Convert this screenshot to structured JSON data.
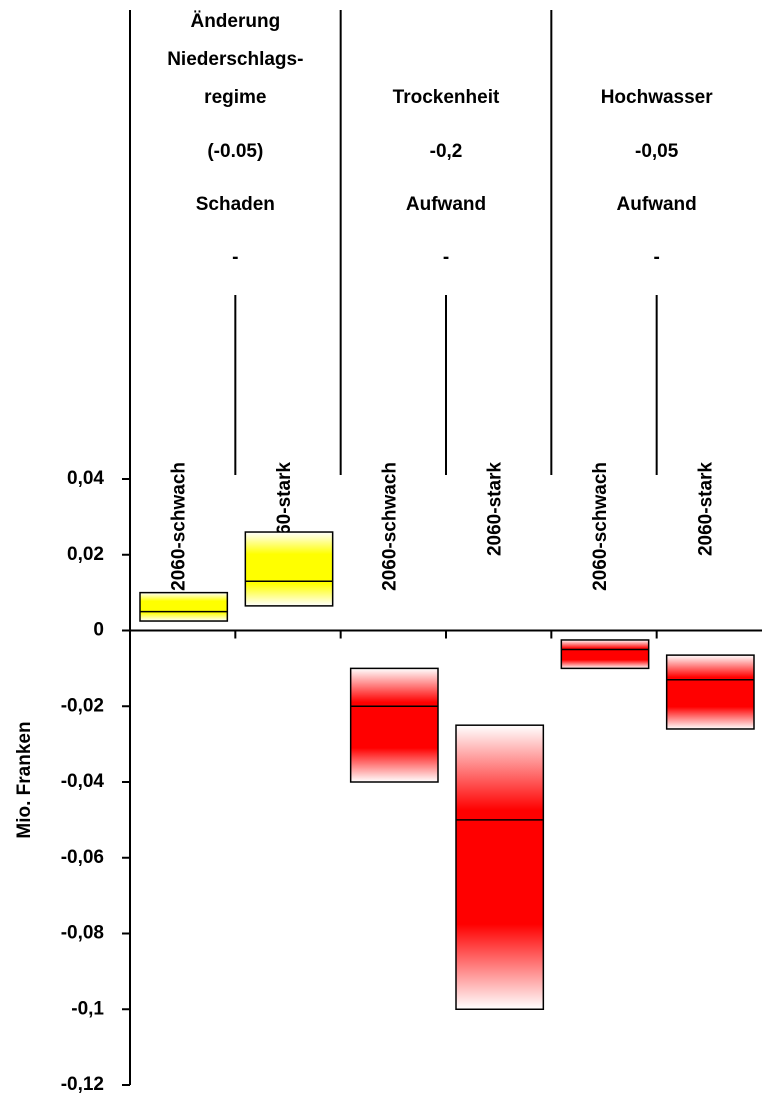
{
  "chart_data": {
    "type": "range-bar",
    "ylabel": "Mio. Franken",
    "ylim": [
      -0.12,
      0.04
    ],
    "yticks": [
      {
        "value": 0.04,
        "label": "0,04"
      },
      {
        "value": 0.02,
        "label": "0,02"
      },
      0,
      {
        "value": -0.02,
        "label": "-0,02"
      },
      {
        "value": -0.04,
        "label": "-0,04"
      },
      {
        "value": -0.06,
        "label": "-0,06"
      },
      {
        "value": -0.08,
        "label": "-0,08"
      },
      {
        "value": -0.1,
        "label": "-0,1"
      },
      {
        "value": -0.12,
        "label": "-0,12"
      }
    ],
    "groups": [
      {
        "name_lines": [
          "Änderung",
          "Niederschlags-",
          "regime"
        ],
        "factor": "(-0.05)",
        "kind": "Schaden",
        "dash": "-",
        "color": "#ffff00",
        "categories": [
          "2060-schwach",
          "2060-stark"
        ],
        "low": [
          0.0025,
          0.0065
        ],
        "mid": [
          0.005,
          0.013
        ],
        "high": [
          0.01,
          0.026
        ]
      },
      {
        "name_lines": [
          "Trockenheit"
        ],
        "factor": "-0,2",
        "kind": "Aufwand",
        "dash": "-",
        "color": "#ff0000",
        "categories": [
          "2060-schwach",
          "2060-stark"
        ],
        "low": [
          -0.04,
          -0.1
        ],
        "mid": [
          -0.02,
          -0.05
        ],
        "high": [
          -0.01,
          -0.025
        ]
      },
      {
        "name_lines": [
          "Hochwasser"
        ],
        "factor": "-0,05",
        "kind": "Aufwand",
        "dash": "-",
        "color": "#ff0000",
        "categories": [
          "2060-schwach",
          "2060-stark"
        ],
        "low": [
          -0.01,
          -0.026
        ],
        "mid": [
          -0.005,
          -0.013
        ],
        "high": [
          -0.0025,
          -0.0065
        ]
      }
    ]
  }
}
